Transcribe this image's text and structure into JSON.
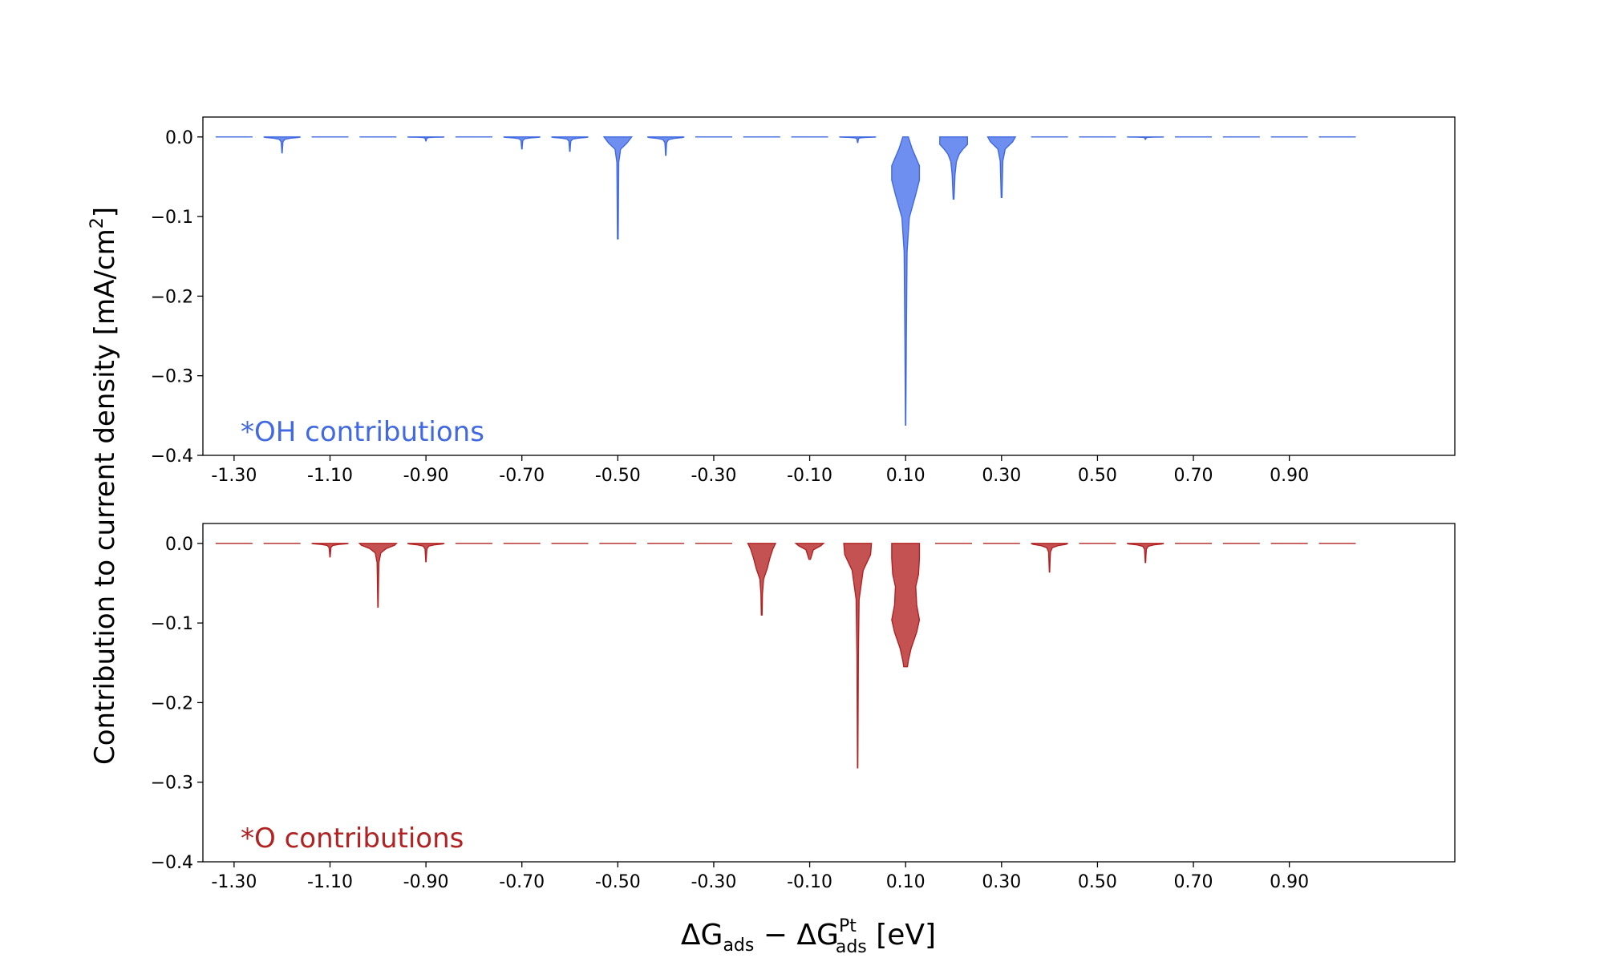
{
  "figure": {
    "ylabel": "Contribution to current density [mA/cm",
    "ylabel_sup": "2",
    "ylabel_end": "]",
    "xlabel_parts": {
      "delta1": "ΔG",
      "sub1": "ads",
      "minus": " − ΔG",
      "sup2": "Pt",
      "sub2": "ads",
      "unit": " [eV]"
    }
  },
  "chart_data": [
    {
      "type": "violin",
      "annotation": "*OH contributions",
      "color": "#4169e1",
      "fill": "#6f8ff0",
      "ylim": [
        -0.4,
        0.025
      ],
      "yticks": [
        0.0,
        -0.1,
        -0.2,
        -0.3,
        -0.4
      ],
      "ytick_labels": [
        "0.0",
        "−0.1",
        "−0.2",
        "−0.3",
        "−0.4"
      ],
      "xticks": [
        -1.3,
        -1.1,
        -0.9,
        -0.7,
        -0.5,
        -0.3,
        -0.1,
        0.1,
        0.3,
        0.5,
        0.7,
        0.9
      ],
      "xtick_labels": [
        "-1.30",
        "-1.10",
        "-0.90",
        "-0.70",
        "-0.50",
        "-0.30",
        "-0.10",
        "0.10",
        "0.30",
        "0.50",
        "0.70",
        "0.90"
      ],
      "violins": [
        {
          "x": -1.3,
          "min": 0.0
        },
        {
          "x": -1.2,
          "min": -0.02
        },
        {
          "x": -1.1,
          "min": 0.0
        },
        {
          "x": -1.0,
          "min": 0.0
        },
        {
          "x": -0.9,
          "min": -0.005
        },
        {
          "x": -0.8,
          "min": 0.0
        },
        {
          "x": -0.7,
          "min": -0.015
        },
        {
          "x": -0.6,
          "min": -0.018
        },
        {
          "x": -0.5,
          "min": -0.128
        },
        {
          "x": -0.4,
          "min": -0.023
        },
        {
          "x": -0.3,
          "min": 0.0
        },
        {
          "x": -0.2,
          "min": 0.0
        },
        {
          "x": -0.1,
          "min": 0.0
        },
        {
          "x": 0.0,
          "min": -0.007
        },
        {
          "x": 0.1,
          "min": -0.362
        },
        {
          "x": 0.2,
          "min": -0.078
        },
        {
          "x": 0.3,
          "min": -0.076
        },
        {
          "x": 0.4,
          "min": 0.0
        },
        {
          "x": 0.5,
          "min": 0.0
        },
        {
          "x": 0.6,
          "min": -0.003
        },
        {
          "x": 0.7,
          "min": 0.0
        },
        {
          "x": 0.8,
          "min": 0.0
        },
        {
          "x": 0.9,
          "min": 0.0
        },
        {
          "x": 1.0,
          "min": 0.0
        }
      ]
    },
    {
      "type": "violin",
      "annotation": "*O contributions",
      "color": "#b22222",
      "fill": "#c45252",
      "ylim": [
        -0.4,
        0.025
      ],
      "yticks": [
        0.0,
        -0.1,
        -0.2,
        -0.3,
        -0.4
      ],
      "ytick_labels": [
        "0.0",
        "−0.1",
        "−0.2",
        "−0.3",
        "−0.4"
      ],
      "xticks": [
        -1.3,
        -1.1,
        -0.9,
        -0.7,
        -0.5,
        -0.3,
        -0.1,
        0.1,
        0.3,
        0.5,
        0.7,
        0.9
      ],
      "xtick_labels": [
        "-1.30",
        "-1.10",
        "-0.90",
        "-0.70",
        "-0.50",
        "-0.30",
        "-0.10",
        "0.10",
        "0.30",
        "0.50",
        "0.70",
        "0.90"
      ],
      "violins": [
        {
          "x": -1.3,
          "min": 0.0
        },
        {
          "x": -1.2,
          "min": 0.0
        },
        {
          "x": -1.1,
          "min": -0.017
        },
        {
          "x": -1.0,
          "min": -0.08
        },
        {
          "x": -0.9,
          "min": -0.023
        },
        {
          "x": -0.8,
          "min": 0.0
        },
        {
          "x": -0.7,
          "min": 0.0
        },
        {
          "x": -0.6,
          "min": 0.0
        },
        {
          "x": -0.5,
          "min": 0.0
        },
        {
          "x": -0.4,
          "min": 0.0
        },
        {
          "x": -0.3,
          "min": 0.0
        },
        {
          "x": -0.2,
          "min": -0.09
        },
        {
          "x": -0.1,
          "min": -0.02
        },
        {
          "x": 0.0,
          "min": -0.282
        },
        {
          "x": 0.1,
          "min": -0.155
        },
        {
          "x": 0.2,
          "min": 0.0
        },
        {
          "x": 0.3,
          "min": 0.0
        },
        {
          "x": 0.4,
          "min": -0.036
        },
        {
          "x": 0.5,
          "min": 0.0
        },
        {
          "x": 0.6,
          "min": -0.024
        },
        {
          "x": 0.7,
          "min": 0.0
        },
        {
          "x": 0.8,
          "min": 0.0
        },
        {
          "x": 0.9,
          "min": 0.0
        },
        {
          "x": 1.0,
          "min": 0.0
        }
      ]
    }
  ]
}
